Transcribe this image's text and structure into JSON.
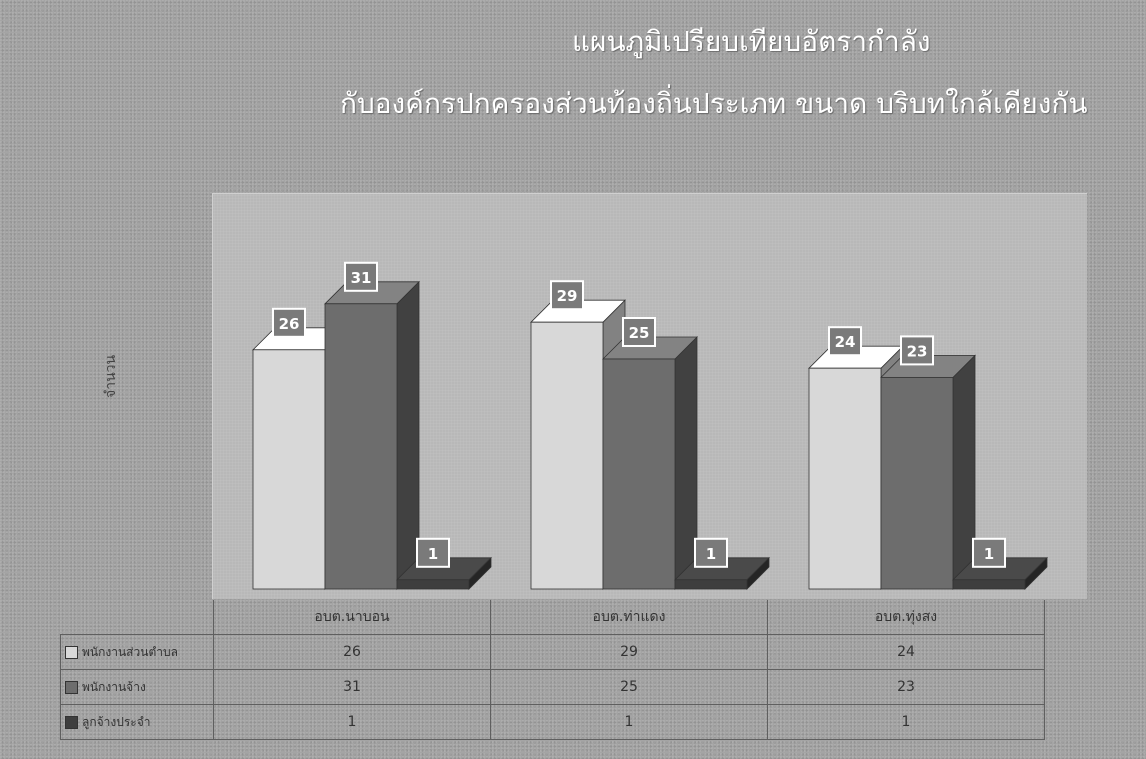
{
  "chart_data": {
    "type": "bar",
    "title": "แผนภูมิเปรียบเทียบอัตรากำลัง",
    "subtitle": "กับองค์กรปกครองส่วนท้องถิ่นประเภท ขนาด บริบทใกล้เคียงกัน",
    "ylabel": "จำนวน",
    "categories": [
      "อบต.นาบอน",
      "อบต.ท่าแดง",
      "อบต.ทุ่งสง"
    ],
    "series": [
      {
        "name": "พนักงานส่วนตำบล",
        "values": [
          26,
          29,
          24
        ],
        "color": "#d8d8d8"
      },
      {
        "name": "พนักงานจ้าง",
        "values": [
          31,
          25,
          23
        ],
        "color": "#6d6d6d"
      },
      {
        "name": "ลูกจ้างประจำ",
        "values": [
          1,
          1,
          1
        ],
        "color": "#3e3e3e"
      }
    ],
    "ylim": [
      0,
      35
    ],
    "grid": false,
    "legend": "data-table"
  }
}
